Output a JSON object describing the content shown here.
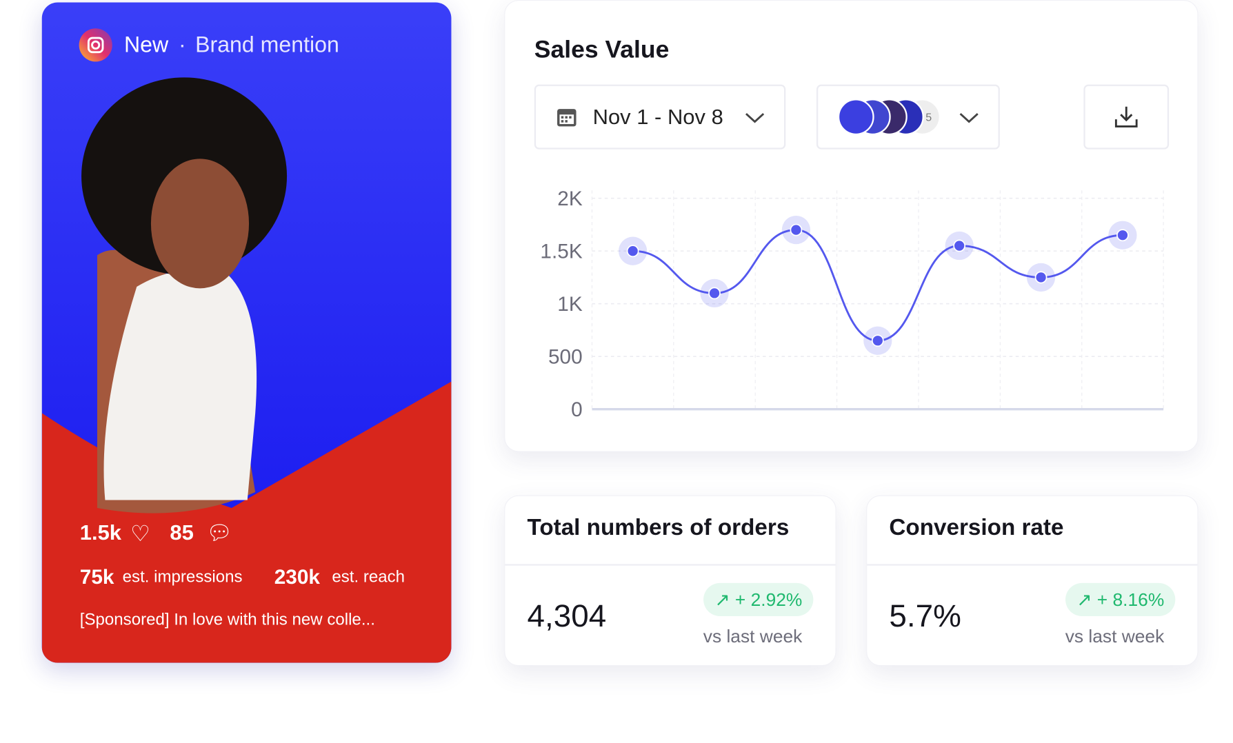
{
  "post": {
    "source": "New",
    "kind": "Brand mention",
    "likes": "1.5k",
    "comments": "85",
    "impressions": "75k",
    "impressions_label": "est. impressions",
    "reach": "230k",
    "reach_label": "est. reach",
    "caption": "[Sponsored] In love with this new colle..."
  },
  "chart_data": {
    "type": "line",
    "title": "Sales Value",
    "date_range": "Nov 1 - Nov 8",
    "people_more": "5",
    "categories": [
      null,
      null,
      null,
      null,
      null,
      null,
      null
    ],
    "values": [
      1500,
      1100,
      1700,
      650,
      1550,
      1250,
      1650
    ],
    "color": "#5458ee",
    "ylim": [
      0,
      2000
    ],
    "yticks": [
      0,
      500,
      {
        "value": 1000,
        "label": "1K"
      },
      {
        "value": 1500,
        "label": "1.5K"
      },
      {
        "value": 2000,
        "label": "2K"
      }
    ],
    "grid": true
  },
  "stats": [
    {
      "title": "Total numbers of orders",
      "value": "4,304",
      "change": "+ 2.92%",
      "note": "vs last week"
    },
    {
      "title": "Conversion rate",
      "value": "5.7%",
      "change": "+ 8.16%",
      "note": "vs last week"
    }
  ]
}
